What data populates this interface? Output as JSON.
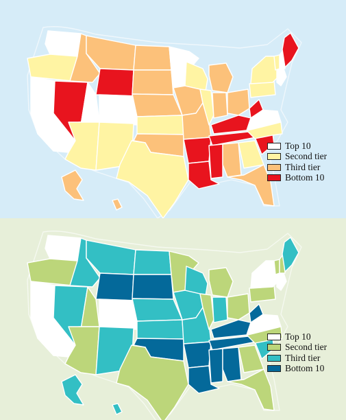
{
  "maps": [
    {
      "legend": [
        {
          "label": "Top 10",
          "color": "#ffffff"
        },
        {
          "label": "Second tier",
          "color": "#fff4a3"
        },
        {
          "label": "Third tier",
          "color": "#fcc17a"
        },
        {
          "label": "Bottom 10",
          "color": "#e8141e"
        }
      ],
      "states": {
        "WA": "top",
        "OR": "second",
        "CA": "top",
        "NV": "bottom",
        "ID": "third",
        "MT": "third",
        "WY": "bottom",
        "UT": "top",
        "CO": "top",
        "AZ": "second",
        "NM": "second",
        "ND": "third",
        "SD": "third",
        "NE": "third",
        "KS": "second",
        "OK": "third",
        "TX": "second",
        "MN": "top",
        "IA": "third",
        "MO": "third",
        "AR": "bottom",
        "LA": "bottom",
        "WI": "second",
        "IL": "second",
        "MI": "third",
        "IN": "third",
        "OH": "third",
        "KY": "bottom",
        "TN": "bottom",
        "MS": "bottom",
        "AL": "third",
        "GA": "second",
        "FL": "third",
        "SC": "bottom",
        "NC": "second",
        "VA": "top",
        "WV": "bottom",
        "PA": "second",
        "NY": "second",
        "NE_coast": "top",
        "VT": "second",
        "NH": "top",
        "ME": "bottom",
        "AK": "third",
        "HI": "third"
      }
    },
    {
      "legend": [
        {
          "label": "Top 10",
          "color": "#ffffff"
        },
        {
          "label": "Second tier",
          "color": "#bcd67a"
        },
        {
          "label": "Third tier",
          "color": "#33bfc4"
        },
        {
          "label": "Bottom 10",
          "color": "#04699a"
        }
      ],
      "states": {
        "WA": "top",
        "OR": "second",
        "CA": "top",
        "NV": "third",
        "ID": "third",
        "MT": "third",
        "WY": "bottom",
        "UT": "second",
        "CO": "top",
        "AZ": "second",
        "NM": "third",
        "ND": "third",
        "SD": "bottom",
        "NE": "third",
        "KS": "third",
        "OK": "bottom",
        "TX": "second",
        "MN": "second",
        "IA": "third",
        "MO": "third",
        "AR": "bottom",
        "LA": "bottom",
        "WI": "third",
        "IL": "second",
        "MI": "second",
        "IN": "third",
        "OH": "second",
        "KY": "bottom",
        "TN": "bottom",
        "MS": "bottom",
        "AL": "bottom",
        "GA": "second",
        "FL": "second",
        "SC": "third",
        "NC": "second",
        "VA": "top",
        "WV": "bottom",
        "PA": "second",
        "NY": "top",
        "NE_coast": "top",
        "VT": "second",
        "NH": "second",
        "ME": "third",
        "AK": "third",
        "HI": "third"
      }
    }
  ]
}
